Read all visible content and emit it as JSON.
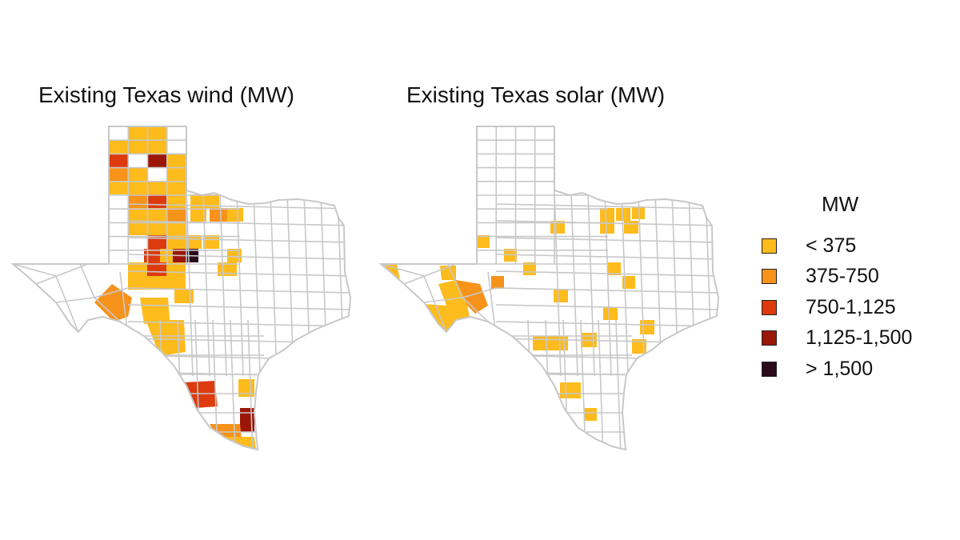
{
  "maps": [
    {
      "id": "wind",
      "title": "Existing Texas wind (MW)"
    },
    {
      "id": "solar",
      "title": "Existing Texas solar (MW)"
    }
  ],
  "legend": {
    "title": "MW",
    "items": [
      {
        "label": "< 375",
        "color": "#fdbb1c"
      },
      {
        "label": "375-750",
        "color": "#f7921b"
      },
      {
        "label": "750-1,125",
        "color": "#dd3a0e"
      },
      {
        "label": "1,125-1,500",
        "color": "#9c1608"
      },
      {
        "label": "> 1,500",
        "color": "#2a0b1c"
      }
    ]
  },
  "style": {
    "county_border": "#c8c8c8",
    "state_border": "#c8c8c8",
    "empty_fill": "#ffffff"
  }
}
